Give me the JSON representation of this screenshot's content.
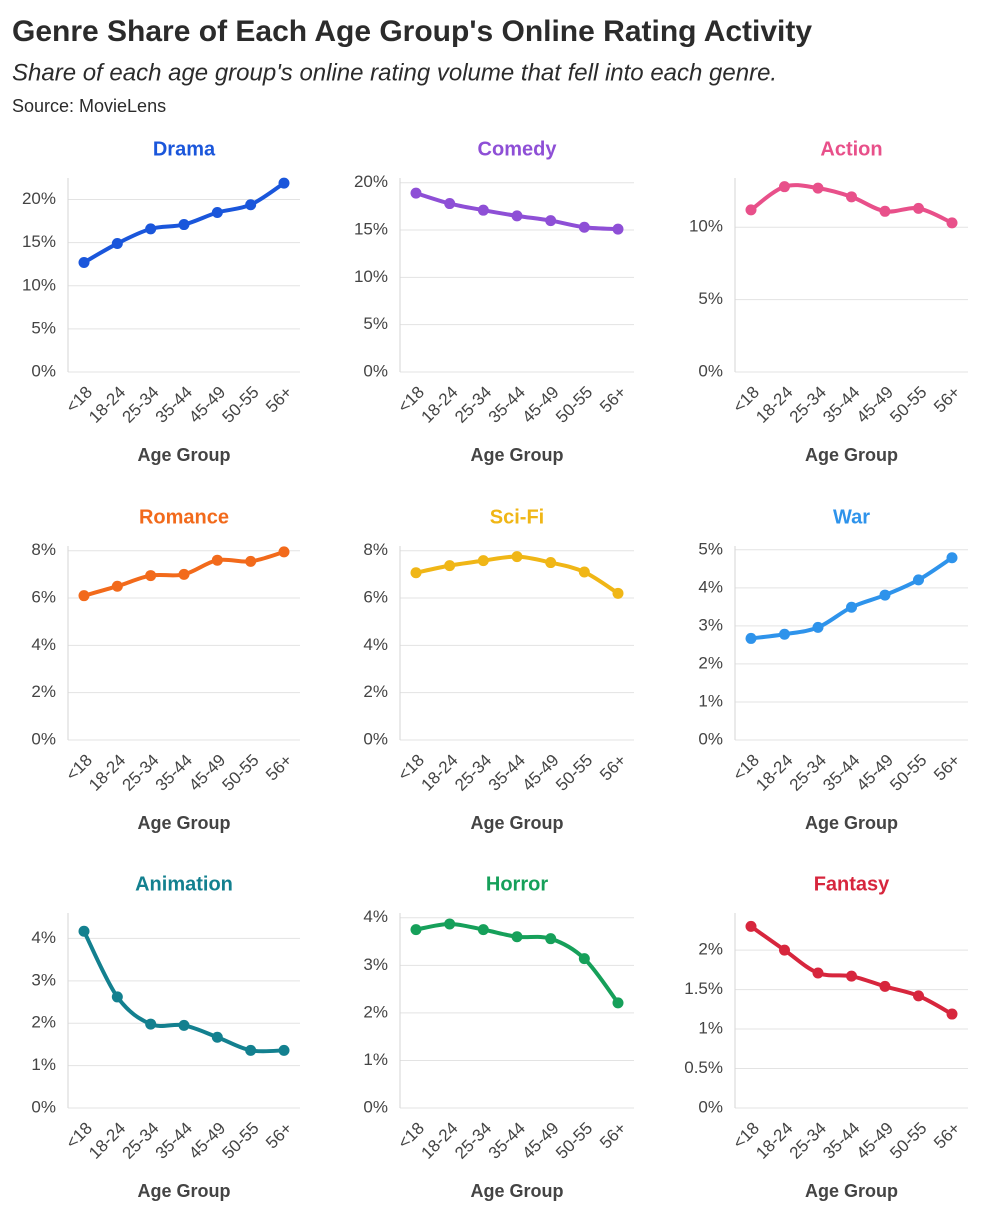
{
  "title": "Genre Share of Each Age Group's Online Rating Activity",
  "subtitle": "Share of each age group's online rating volume that fell into each genre.",
  "source": "Source: MovieLens",
  "chart_data": [
    {
      "type": "line",
      "title": "Drama",
      "xlabel": "Age Group",
      "color": "#1a56db",
      "categories": [
        "<18",
        "18-24",
        "25-34",
        "35-44",
        "45-49",
        "50-55",
        "56+"
      ],
      "values": [
        12.7,
        14.9,
        16.6,
        17.1,
        18.5,
        19.4,
        21.9
      ],
      "ylim": [
        0,
        22.5
      ],
      "grid": true,
      "yticks": [
        {
          "value": 0,
          "label": "0%"
        },
        {
          "value": 5,
          "label": "5%"
        },
        {
          "value": 10,
          "label": "10%"
        },
        {
          "value": 15,
          "label": "15%"
        },
        {
          "value": 20,
          "label": "20%"
        }
      ]
    },
    {
      "type": "line",
      "title": "Comedy",
      "xlabel": "Age Group",
      "color": "#8e4fd6",
      "categories": [
        "<18",
        "18-24",
        "25-34",
        "35-44",
        "45-49",
        "50-55",
        "56+"
      ],
      "values": [
        18.9,
        17.8,
        17.1,
        16.5,
        16.0,
        15.3,
        15.1
      ],
      "ylim": [
        0,
        20.5
      ],
      "grid": true,
      "yticks": [
        {
          "value": 0,
          "label": "0%"
        },
        {
          "value": 5,
          "label": "5%"
        },
        {
          "value": 10,
          "label": "10%"
        },
        {
          "value": 15,
          "label": "15%"
        },
        {
          "value": 20,
          "label": "20%"
        }
      ]
    },
    {
      "type": "line",
      "title": "Action",
      "xlabel": "Age Group",
      "color": "#e8508a",
      "categories": [
        "<18",
        "18-24",
        "25-34",
        "35-44",
        "45-49",
        "50-55",
        "56+"
      ],
      "values": [
        11.2,
        12.8,
        12.7,
        12.1,
        11.1,
        11.3,
        10.3
      ],
      "ylim": [
        0,
        13.4
      ],
      "grid": true,
      "yticks": [
        {
          "value": 0,
          "label": "0%"
        },
        {
          "value": 5,
          "label": "5%"
        },
        {
          "value": 10,
          "label": "10%"
        }
      ]
    },
    {
      "type": "line",
      "title": "Romance",
      "xlabel": "Age Group",
      "color": "#f26a1b",
      "categories": [
        "<18",
        "18-24",
        "25-34",
        "35-44",
        "45-49",
        "50-55",
        "56+"
      ],
      "values": [
        6.1,
        6.5,
        6.95,
        7.0,
        7.6,
        7.55,
        7.95
      ],
      "ylim": [
        0,
        8.2
      ],
      "grid": true,
      "yticks": [
        {
          "value": 0,
          "label": "0%"
        },
        {
          "value": 2,
          "label": "2%"
        },
        {
          "value": 4,
          "label": "4%"
        },
        {
          "value": 6,
          "label": "6%"
        },
        {
          "value": 8,
          "label": "8%"
        }
      ]
    },
    {
      "type": "line",
      "title": "Sci-Fi",
      "xlabel": "Age Group",
      "color": "#f0b616",
      "categories": [
        "<18",
        "18-24",
        "25-34",
        "35-44",
        "45-49",
        "50-55",
        "56+"
      ],
      "values": [
        7.07,
        7.37,
        7.58,
        7.75,
        7.5,
        7.1,
        6.2
      ],
      "ylim": [
        0,
        8.2
      ],
      "grid": true,
      "yticks": [
        {
          "value": 0,
          "label": "0%"
        },
        {
          "value": 2,
          "label": "2%"
        },
        {
          "value": 4,
          "label": "4%"
        },
        {
          "value": 6,
          "label": "6%"
        },
        {
          "value": 8,
          "label": "8%"
        }
      ]
    },
    {
      "type": "line",
      "title": "War",
      "xlabel": "Age Group",
      "color": "#2e93eb",
      "categories": [
        "<18",
        "18-24",
        "25-34",
        "35-44",
        "45-49",
        "50-55",
        "56+"
      ],
      "values": [
        2.67,
        2.78,
        2.96,
        3.49,
        3.81,
        4.21,
        4.79
      ],
      "ylim": [
        0,
        5.1
      ],
      "grid": true,
      "yticks": [
        {
          "value": 0,
          "label": "0%"
        },
        {
          "value": 1,
          "label": "1%"
        },
        {
          "value": 2,
          "label": "2%"
        },
        {
          "value": 3,
          "label": "3%"
        },
        {
          "value": 4,
          "label": "4%"
        },
        {
          "value": 5,
          "label": "5%"
        }
      ]
    },
    {
      "type": "line",
      "title": "Animation",
      "xlabel": "Age Group",
      "color": "#13808f",
      "categories": [
        "<18",
        "18-24",
        "25-34",
        "35-44",
        "45-49",
        "50-55",
        "56+"
      ],
      "values": [
        4.17,
        2.62,
        1.98,
        1.95,
        1.67,
        1.36,
        1.36
      ],
      "ylim": [
        0,
        4.6
      ],
      "grid": true,
      "yticks": [
        {
          "value": 0,
          "label": "0%"
        },
        {
          "value": 1,
          "label": "1%"
        },
        {
          "value": 2,
          "label": "2%"
        },
        {
          "value": 3,
          "label": "3%"
        },
        {
          "value": 4,
          "label": "4%"
        }
      ]
    },
    {
      "type": "line",
      "title": "Horror",
      "xlabel": "Age Group",
      "color": "#16a05a",
      "categories": [
        "<18",
        "18-24",
        "25-34",
        "35-44",
        "45-49",
        "50-55",
        "56+"
      ],
      "values": [
        3.75,
        3.87,
        3.75,
        3.6,
        3.56,
        3.14,
        2.21
      ],
      "ylim": [
        0,
        4.1
      ],
      "grid": true,
      "yticks": [
        {
          "value": 0,
          "label": "0%"
        },
        {
          "value": 1,
          "label": "1%"
        },
        {
          "value": 2,
          "label": "2%"
        },
        {
          "value": 3,
          "label": "3%"
        },
        {
          "value": 4,
          "label": "4%"
        }
      ]
    },
    {
      "type": "line",
      "title": "Fantasy",
      "xlabel": "Age Group",
      "color": "#d7263d",
      "categories": [
        "<18",
        "18-24",
        "25-34",
        "35-44",
        "45-49",
        "50-55",
        "56+"
      ],
      "values": [
        2.3,
        2.0,
        1.71,
        1.67,
        1.54,
        1.42,
        1.19
      ],
      "ylim": [
        0,
        2.47
      ],
      "grid": true,
      "yticks": [
        {
          "value": 0,
          "label": "0%"
        },
        {
          "value": 0.5,
          "label": "0.5%"
        },
        {
          "value": 1,
          "label": "1%"
        },
        {
          "value": 1.5,
          "label": "1.5%"
        },
        {
          "value": 2,
          "label": "2%"
        }
      ]
    }
  ]
}
